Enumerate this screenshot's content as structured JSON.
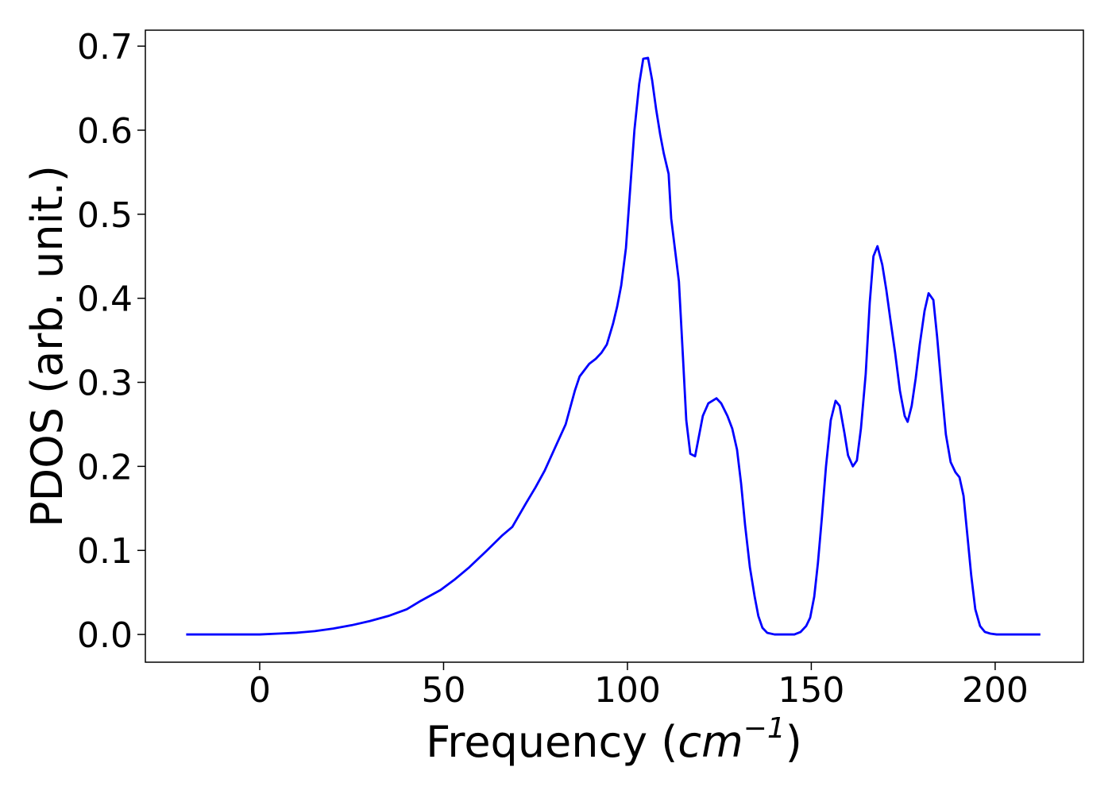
{
  "chart_data": {
    "type": "line",
    "xlabel_parts": [
      "Frequency (",
      "cm",
      "−1",
      ")"
    ],
    "ylabel": "PDOS (arb. unit.)",
    "color": "#0000ff",
    "x": [
      -20,
      -10,
      0,
      5,
      10,
      15,
      20,
      25,
      30,
      35,
      40,
      43.8,
      49.2,
      52.9,
      57,
      61.8,
      66,
      68.7,
      72.4,
      75,
      77.5,
      80.6,
      83.2,
      85.7,
      87,
      89.6,
      91.4,
      92.9,
      94.4,
      96.1,
      97.2,
      98.3,
      99.6,
      101.9,
      103.2,
      104.3,
      105.6,
      106.7,
      107.8,
      108.9,
      109.9,
      111.2,
      111.9,
      114,
      115.1,
      116,
      117.1,
      118.4,
      120.5,
      122,
      124.2,
      125.5,
      127.2,
      128.5,
      129.8,
      130.9,
      132,
      133.3,
      134.6,
      135.6,
      136.7,
      138,
      140,
      145.4,
      147.1,
      148.6,
      149.7,
      150.8,
      151.8,
      152.9,
      154,
      155.3,
      156.6,
      157.7,
      159,
      160,
      161.3,
      162.4,
      163.5,
      164.8,
      165.9,
      166.9,
      168,
      169.3,
      170.4,
      171.5,
      172.8,
      174.1,
      175.4,
      176.2,
      177.3,
      178.4,
      179.5,
      180.8,
      181.9,
      183.2,
      184.2,
      185.5,
      186.6,
      187.9,
      189.2,
      190.3,
      191.4,
      192.4,
      193.5,
      194.6,
      195.9,
      197.2,
      198.7,
      200.4,
      212.3
    ],
    "y": [
      0,
      0,
      0,
      0.001,
      0.002,
      0.004,
      0.007,
      0.011,
      0.016,
      0.022,
      0.03,
      0.04,
      0.053,
      0.065,
      0.08,
      0.1,
      0.118,
      0.128,
      0.156,
      0.175,
      0.195,
      0.225,
      0.25,
      0.29,
      0.307,
      0.322,
      0.328,
      0.335,
      0.345,
      0.37,
      0.39,
      0.415,
      0.46,
      0.6,
      0.655,
      0.685,
      0.686,
      0.66,
      0.625,
      0.595,
      0.572,
      0.548,
      0.495,
      0.42,
      0.33,
      0.255,
      0.215,
      0.212,
      0.26,
      0.275,
      0.281,
      0.275,
      0.26,
      0.245,
      0.22,
      0.18,
      0.13,
      0.08,
      0.045,
      0.022,
      0.008,
      0.002,
      0,
      0,
      0.003,
      0.01,
      0.02,
      0.045,
      0.085,
      0.14,
      0.2,
      0.255,
      0.278,
      0.272,
      0.24,
      0.213,
      0.2,
      0.207,
      0.245,
      0.31,
      0.395,
      0.45,
      0.462,
      0.44,
      0.41,
      0.375,
      0.335,
      0.29,
      0.26,
      0.253,
      0.272,
      0.305,
      0.345,
      0.385,
      0.406,
      0.398,
      0.355,
      0.29,
      0.238,
      0.205,
      0.193,
      0.187,
      0.165,
      0.12,
      0.07,
      0.03,
      0.01,
      0.003,
      0.001,
      0,
      0
    ],
    "xlim": [
      -31.1,
      224
    ],
    "ylim": [
      -0.033,
      0.719
    ],
    "xticks": [
      0,
      50,
      100,
      150,
      200
    ],
    "yticks": [
      {
        "value": 0,
        "label": "0.0"
      },
      {
        "value": 0.1,
        "label": "0.1"
      },
      {
        "value": 0.2,
        "label": "0.2"
      },
      {
        "value": 0.3,
        "label": "0.3"
      },
      {
        "value": 0.4,
        "label": "0.4"
      },
      {
        "value": 0.5,
        "label": "0.5"
      },
      {
        "value": 0.6,
        "label": "0.6"
      },
      {
        "value": 0.7,
        "label": "0.7"
      }
    ]
  }
}
